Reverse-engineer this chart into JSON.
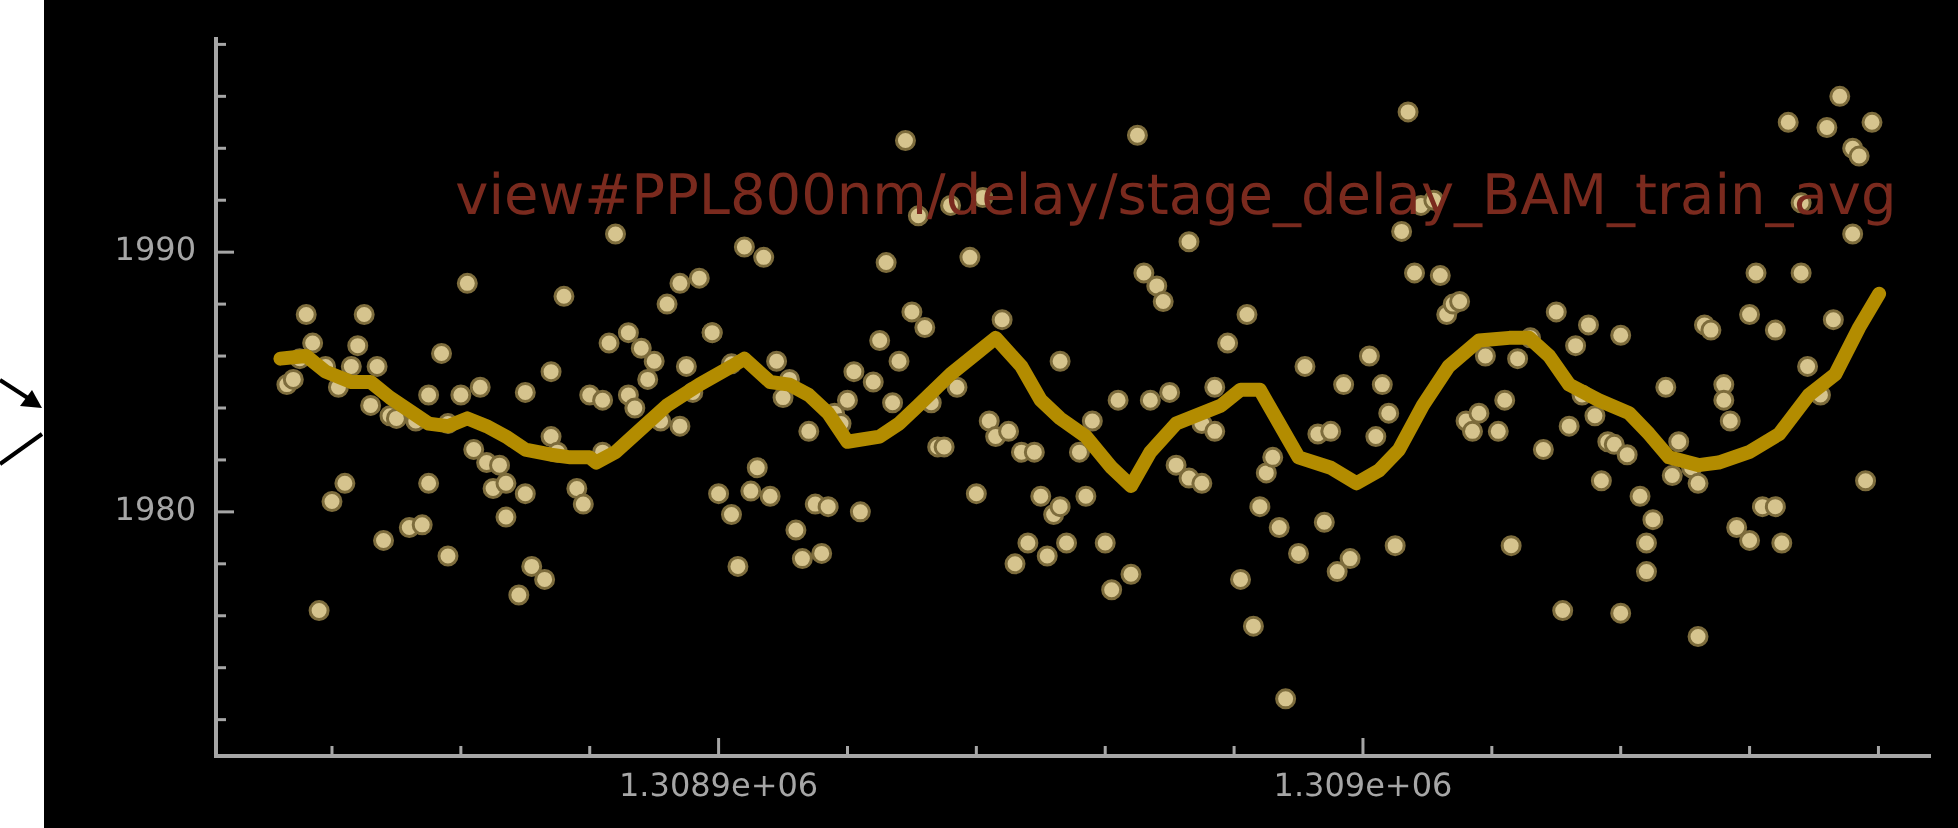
{
  "chart_data": {
    "type": "scatter",
    "annotations": [
      "view#PPL800nm/delay/stage_delay_BAM_train_avg"
    ],
    "xlim": [
      1308822,
      1309088
    ],
    "ylim": [
      1970.6,
      1998.2
    ],
    "xticks": [
      {
        "value": 1308840,
        "label": null
      },
      {
        "value": 1308860,
        "label": null
      },
      {
        "value": 1308880,
        "label": null
      },
      {
        "value": 1308900,
        "label": "1.3089e+06"
      },
      {
        "value": 1308920,
        "label": null
      },
      {
        "value": 1308940,
        "label": null
      },
      {
        "value": 1308960,
        "label": null
      },
      {
        "value": 1308980,
        "label": null
      },
      {
        "value": 1309000,
        "label": "1.309e+06"
      },
      {
        "value": 1309020,
        "label": null
      },
      {
        "value": 1309040,
        "label": null
      },
      {
        "value": 1309060,
        "label": null
      },
      {
        "value": 1309080,
        "label": null
      }
    ],
    "yticks": [
      {
        "value": 1972,
        "label": null
      },
      {
        "value": 1974,
        "label": null
      },
      {
        "value": 1976,
        "label": null
      },
      {
        "value": 1978,
        "label": null
      },
      1980,
      {
        "value": 1982,
        "label": null
      },
      {
        "value": 1984,
        "label": null
      },
      {
        "value": 1986,
        "label": null
      },
      {
        "value": 1988,
        "label": null
      },
      1990,
      {
        "value": 1992,
        "label": null
      },
      {
        "value": 1994,
        "label": null
      },
      {
        "value": 1996,
        "label": null
      },
      {
        "value": 1998,
        "label": null
      }
    ],
    "grid": false,
    "legend": false,
    "series": [
      {
        "marker": "circle",
        "color": "#d6c48e",
        "x": [
          1308833,
          1308834,
          1308835,
          1308836,
          1308837,
          1308838,
          1308839,
          1308840,
          1308841,
          1308842,
          1308843,
          1308844,
          1308845,
          1308846,
          1308847,
          1308848,
          1308849,
          1308850,
          1308852,
          1308853,
          1308854,
          1308855,
          1308855,
          1308857,
          1308858,
          1308858,
          1308860,
          1308861,
          1308862,
          1308863,
          1308864,
          1308865,
          1308866,
          1308867,
          1308867,
          1308869,
          1308870,
          1308870,
          1308871,
          1308873,
          1308874,
          1308874,
          1308875,
          1308876,
          1308878,
          1308879,
          1308880,
          1308882,
          1308882,
          1308883,
          1308884,
          1308886,
          1308886,
          1308887,
          1308888,
          1308889,
          1308890,
          1308891,
          1308892,
          1308894,
          1308894,
          1308895,
          1308896,
          1308897,
          1308899,
          1308899,
          1308900,
          1308902,
          1308902,
          1308903,
          1308904,
          1308905,
          1308906,
          1308907,
          1308908,
          1308909,
          1308910,
          1308911,
          1308912,
          1308913,
          1308914,
          1308915,
          1308916,
          1308917,
          1308918,
          1308919,
          1308920,
          1308921,
          1308922,
          1308924,
          1308925,
          1308926,
          1308927,
          1308928,
          1308929,
          1308930,
          1308931,
          1308932,
          1308933,
          1308934,
          1308935,
          1308936,
          1308937,
          1308939,
          1308940,
          1308941,
          1308942,
          1308943,
          1308944,
          1308945,
          1308946,
          1308947,
          1308948,
          1308949,
          1308950,
          1308951,
          1308952,
          1308953,
          1308953,
          1308954,
          1308956,
          1308957,
          1308958,
          1308960,
          1308961,
          1308962,
          1308964,
          1308965,
          1308966,
          1308967,
          1308968,
          1308969,
          1308970,
          1308971,
          1308973,
          1308973,
          1308975,
          1308975,
          1308977,
          1308977,
          1308979,
          1308981,
          1308982,
          1308983,
          1308984,
          1308985,
          1308986,
          1308987,
          1308988,
          1308990,
          1308991,
          1308993,
          1308994,
          1308995,
          1308996,
          1308997,
          1308998,
          1309001,
          1309002,
          1309003,
          1309004,
          1309005,
          1309006,
          1309007,
          1309008,
          1309009,
          1309011,
          1309012,
          1309013,
          1309014,
          1309015,
          1309016,
          1309017,
          1309018,
          1309019,
          1309021,
          1309022,
          1309023,
          1309024,
          1309026,
          1309028,
          1309030,
          1309031,
          1309032,
          1309033,
          1309034,
          1309035,
          1309036,
          1309037,
          1309038,
          1309039,
          1309040,
          1309040,
          1309041,
          1309043,
          1309044,
          1309044,
          1309045,
          1309047,
          1309048,
          1309049,
          1309051,
          1309052,
          1309052,
          1309053,
          1309054,
          1309056,
          1309056,
          1309057,
          1309058,
          1309060,
          1309060,
          1309061,
          1309062,
          1309064,
          1309064,
          1309065,
          1309066,
          1309068,
          1309068,
          1309069,
          1309071,
          1309072,
          1309073,
          1309074,
          1309076,
          1309076,
          1309077,
          1309078,
          1309079
        ],
        "values": [
          1984.9,
          1985.1,
          1985.9,
          1987.6,
          1986.5,
          1976.2,
          1985.6,
          1980.4,
          1984.8,
          1981.1,
          1985.6,
          1986.4,
          1987.6,
          1984.1,
          1985.6,
          1978.9,
          1983.7,
          1983.6,
          1979.4,
          1983.5,
          1979.5,
          1984.5,
          1981.1,
          1986.1,
          1983.4,
          1978.3,
          1984.5,
          1988.8,
          1982.4,
          1984.8,
          1981.9,
          1980.9,
          1981.8,
          1981.1,
          1979.8,
          1976.8,
          1980.7,
          1984.6,
          1977.9,
          1977.4,
          1985.4,
          1982.9,
          1982.3,
          1988.3,
          1980.9,
          1980.3,
          1984.5,
          1982.3,
          1984.3,
          1986.5,
          1990.7,
          1984.5,
          1986.9,
          1984.0,
          1986.3,
          1985.1,
          1985.8,
          1983.5,
          1988.0,
          1983.3,
          1988.8,
          1985.6,
          1984.6,
          1989.0,
          1986.9,
          1986.9,
          1980.7,
          1979.9,
          1985.7,
          1977.9,
          1990.2,
          1980.8,
          1981.7,
          1989.8,
          1980.6,
          1985.8,
          1984.4,
          1985.1,
          1979.3,
          1978.2,
          1983.1,
          1980.3,
          1978.4,
          1980.2,
          1983.8,
          1983.4,
          1984.3,
          1985.4,
          1980.0,
          1985.0,
          1986.6,
          1989.6,
          1984.2,
          1985.8,
          1994.3,
          1987.7,
          1991.4,
          1987.1,
          1984.2,
          1982.5,
          1982.5,
          1991.8,
          1984.8,
          1989.8,
          1980.7,
          1992.1,
          1983.5,
          1982.9,
          1987.4,
          1983.1,
          1978.0,
          1982.3,
          1978.8,
          1982.3,
          1980.6,
          1978.3,
          1979.9,
          1985.8,
          1980.2,
          1978.8,
          1982.3,
          1980.6,
          1983.5,
          1978.8,
          1977.0,
          1984.3,
          1977.6,
          1994.5,
          1989.2,
          1984.3,
          1988.7,
          1988.1,
          1984.6,
          1981.8,
          1990.4,
          1981.3,
          1981.1,
          1983.4,
          1984.8,
          1983.1,
          1986.5,
          1977.4,
          1987.6,
          1975.6,
          1980.2,
          1981.5,
          1982.1,
          1979.4,
          1972.8,
          1978.4,
          1985.6,
          1983.0,
          1979.6,
          1983.1,
          1977.7,
          1984.9,
          1978.2,
          1986.0,
          1982.9,
          1984.9,
          1983.8,
          1978.7,
          1990.8,
          1995.4,
          1989.2,
          1991.8,
          1992.0,
          1989.1,
          1987.6,
          1988.0,
          1988.1,
          1983.5,
          1983.1,
          1983.8,
          1986.0,
          1983.1,
          1984.3,
          1978.7,
          1985.9,
          1986.7,
          1982.4,
          1987.7,
          1976.2,
          1983.3,
          1986.4,
          1984.5,
          1987.2,
          1983.7,
          1981.2,
          1982.7,
          1982.6,
          1976.1,
          1986.8,
          1982.2,
          1980.6,
          1977.7,
          1978.8,
          1979.7,
          1984.8,
          1981.4,
          1982.7,
          1981.7,
          1981.1,
          1975.2,
          1987.2,
          1987.0,
          1984.9,
          1984.3,
          1983.5,
          1979.4,
          1978.9,
          1987.6,
          1989.2,
          1980.2,
          1987.0,
          1980.2,
          1978.8,
          1995.0,
          1989.2,
          1991.9,
          1985.6,
          1984.5,
          1994.8,
          1987.4,
          1996.0,
          1994.0,
          1990.7,
          1993.7,
          1981.2,
          1995.0
        ]
      },
      {
        "type": "line",
        "marker": "none",
        "color": "#b38c00",
        "x": [
          1308832,
          1308836,
          1308839,
          1308843,
          1308846,
          1308849,
          1308852,
          1308855,
          1308858,
          1308861,
          1308864,
          1308867,
          1308870,
          1308874,
          1308877,
          1308880,
          1308881,
          1308884,
          1308888,
          1308892,
          1308897,
          1308902,
          1308904,
          1308908,
          1308911,
          1308914,
          1308917,
          1308920,
          1308925,
          1308928,
          1308931,
          1308936,
          1308940,
          1308943,
          1308947,
          1308950,
          1308953,
          1308957,
          1308961,
          1308964,
          1308967,
          1308971,
          1308978,
          1308981,
          1308984,
          1308987,
          1308990,
          1308995,
          1308999,
          1309002.5,
          1309005.6,
          1309009.3,
          1309013.3,
          1309018,
          1309022.7,
          1309025.8,
          1309028.9,
          1309032,
          1309036.6,
          1309041.3,
          1309044.4,
          1309047.5,
          1309052.1,
          1309055.2,
          1309059.9,
          1309064.6,
          1309069.2,
          1309073.3,
          1309077,
          1309080.1
        ],
        "values": [
          1985.9,
          1986.0,
          1985.4,
          1985.0,
          1985.0,
          1984.4,
          1983.9,
          1983.4,
          1983.3,
          1983.6,
          1983.3,
          1982.9,
          1982.4,
          1982.2,
          1982.1,
          1982.1,
          1981.9,
          1982.3,
          1983.2,
          1984.1,
          1984.9,
          1985.6,
          1985.9,
          1985.0,
          1984.9,
          1984.5,
          1983.8,
          1982.7,
          1982.9,
          1983.4,
          1984.1,
          1985.3,
          1986.1,
          1986.7,
          1985.6,
          1984.3,
          1983.6,
          1982.9,
          1981.7,
          1981.0,
          1982.3,
          1983.4,
          1984.1,
          1984.7,
          1984.7,
          1983.4,
          1982.1,
          1981.7,
          1981.1,
          1981.6,
          1982.4,
          1984.1,
          1985.6,
          1986.6,
          1986.7,
          1986.7,
          1986.0,
          1984.9,
          1984.3,
          1983.8,
          1983.0,
          1982.1,
          1981.8,
          1981.9,
          1982.3,
          1983.0,
          1984.5,
          1985.3,
          1987.1,
          1988.4
        ]
      }
    ]
  }
}
